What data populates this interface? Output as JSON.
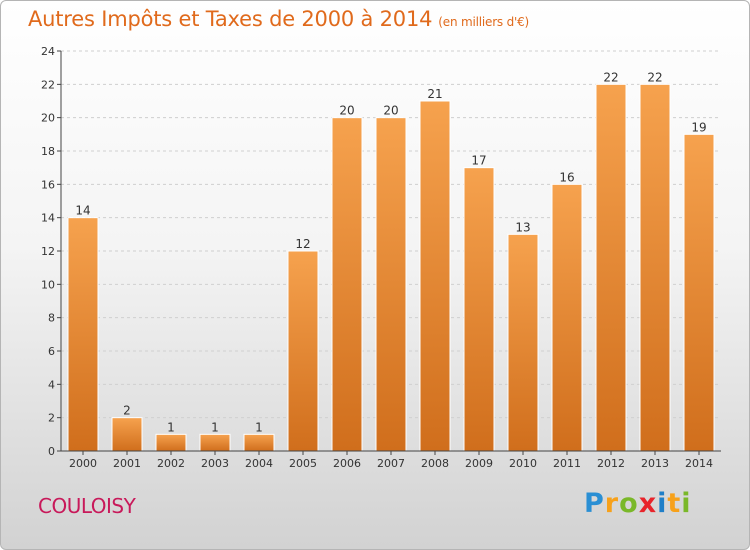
{
  "header": {
    "title": "Autres Impôts et Taxes de 2000 à 2014",
    "subtitle": "(en milliers d'€)"
  },
  "footer": {
    "commune": "COULOISY",
    "logo": "Proxiti"
  },
  "colors": {
    "title": "#e06a1c",
    "bar_top": "#f6a24e",
    "bar_bottom": "#d06e1c",
    "commune": "#c8195a"
  },
  "chart_data": {
    "type": "bar",
    "title": "Autres Impôts et Taxes de 2000 à 2014",
    "subtitle": "(en milliers d'€)",
    "xlabel": "",
    "ylabel": "",
    "categories": [
      "2000",
      "2001",
      "2002",
      "2003",
      "2004",
      "2005",
      "2006",
      "2007",
      "2008",
      "2009",
      "2010",
      "2011",
      "2012",
      "2013",
      "2014"
    ],
    "values": [
      14,
      2,
      1,
      1,
      1,
      12,
      20,
      20,
      21,
      17,
      13,
      16,
      22,
      22,
      19
    ],
    "ylim": [
      0,
      24
    ],
    "yticks": [
      0,
      2,
      4,
      6,
      8,
      10,
      12,
      14,
      16,
      18,
      20,
      22,
      24
    ],
    "grid": true,
    "data_labels": true
  }
}
